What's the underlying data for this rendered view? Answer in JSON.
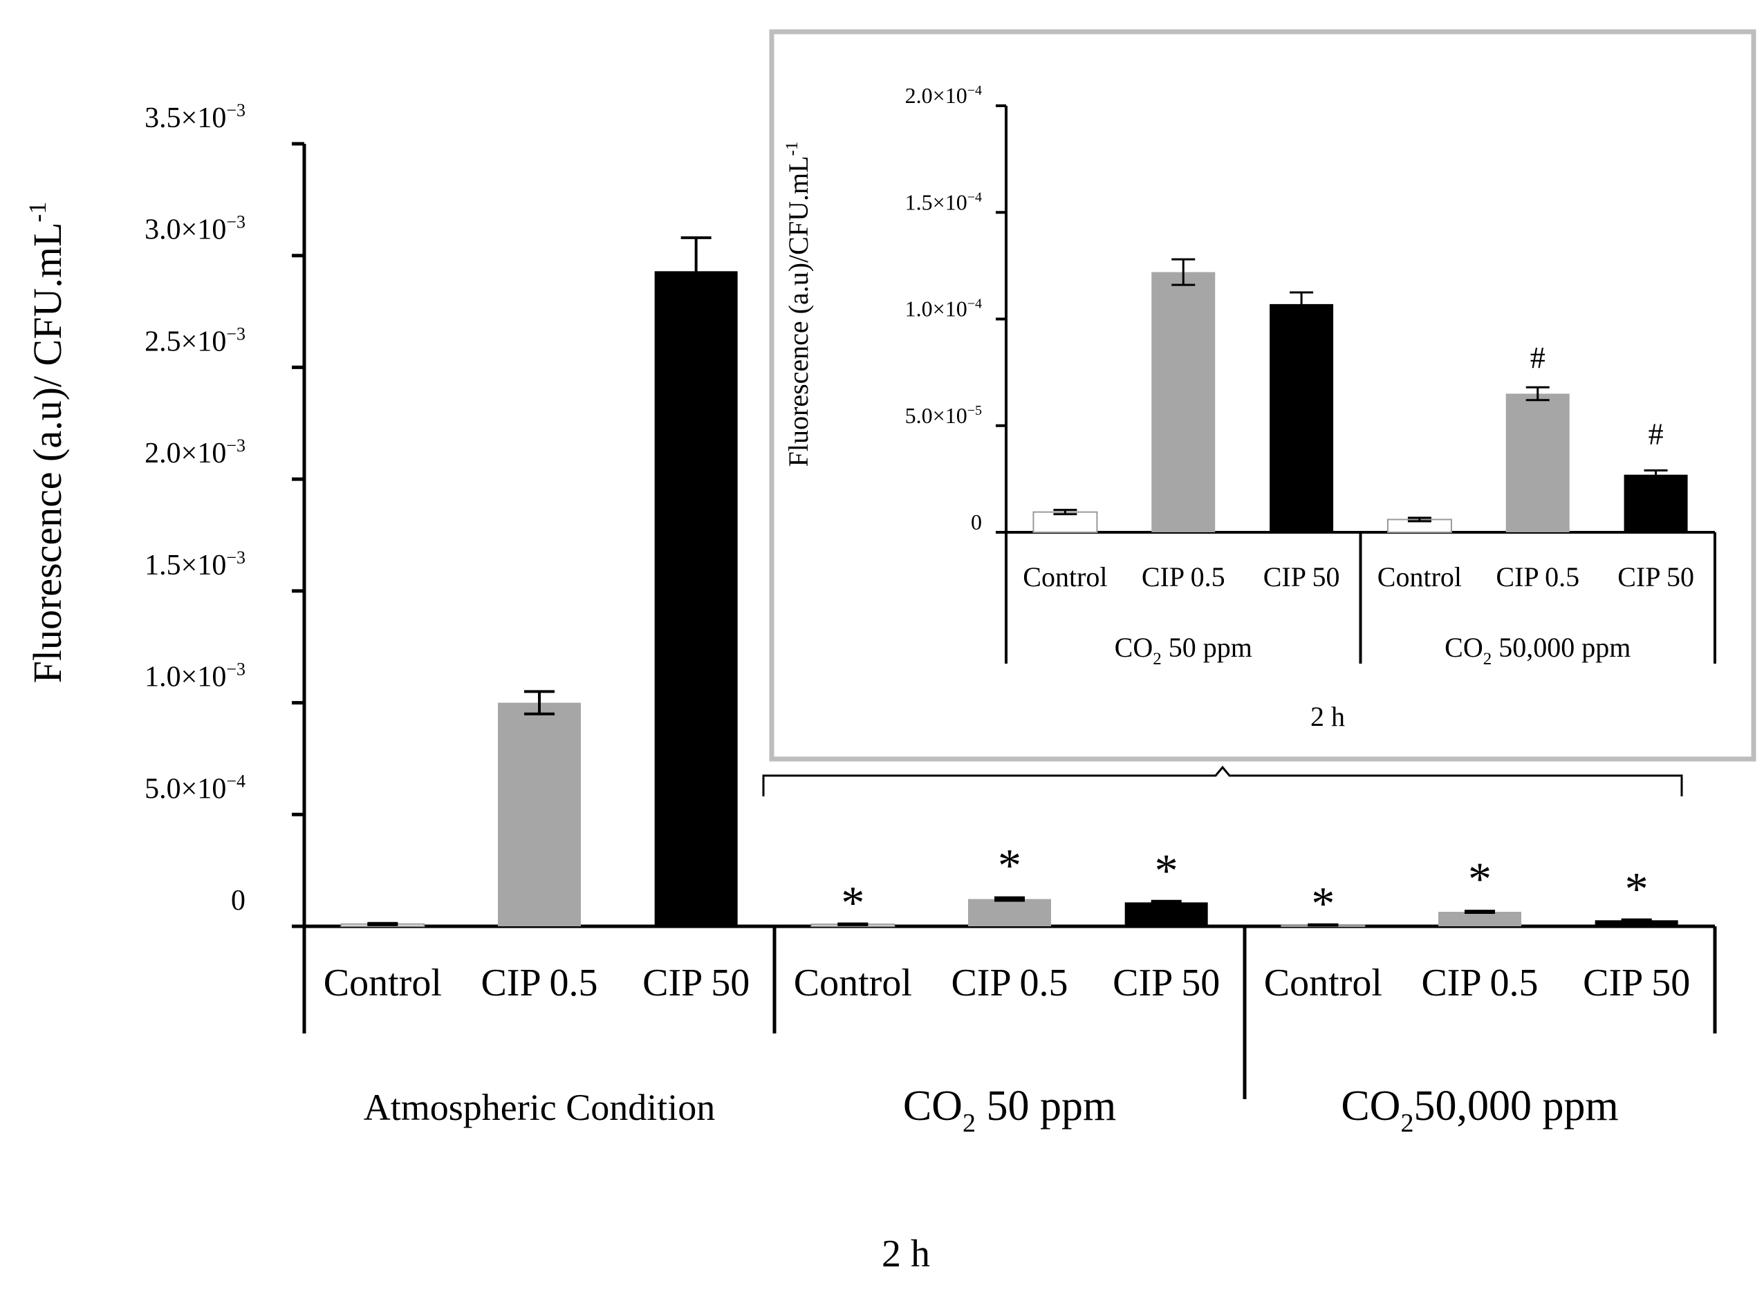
{
  "chart_data": [
    {
      "type": "bar",
      "ylabel_main": "Fluorescence (a.u)/ CFU.mL",
      "ylabel_sup": "-1",
      "ylim": [
        0,
        0.0035
      ],
      "ytick_values": [
        0,
        0.0005,
        0.001,
        0.0015,
        0.002,
        0.0025,
        0.003,
        0.0035
      ],
      "ytick_labels": [
        {
          "value": 0,
          "base": "0",
          "exp": ""
        },
        {
          "value": 0.0005,
          "base": "5.0×10",
          "exp": "−4"
        },
        {
          "value": 0.001,
          "base": "1.0×10",
          "exp": "−3"
        },
        {
          "value": 0.0015,
          "base": "1.5×10",
          "exp": "−3"
        },
        {
          "value": 0.002,
          "base": "2.0×10",
          "exp": "−3"
        },
        {
          "value": 0.0025,
          "base": "2.5×10",
          "exp": "−3"
        },
        {
          "value": 0.003,
          "base": "3.0×10",
          "exp": "−3"
        },
        {
          "value": 0.0035,
          "base": "3.5×10",
          "exp": "−3"
        }
      ],
      "xlabel": "2 h",
      "groups": [
        {
          "name": "Atmospheric Condition",
          "co2": false,
          "rest": "Atmospheric Condition"
        },
        {
          "name": "CO2 50 ppm",
          "co2": true,
          "rest": " 50 ppm"
        },
        {
          "name": "CO2 50,000 ppm",
          "co2": true,
          "rest": "50,000 ppm"
        }
      ],
      "co2_base": "CO",
      "co2_sub": "2",
      "categories": [
        "Control",
        "CIP 0.5",
        "CIP 50"
      ],
      "series_fill": [
        "#ffffff",
        "#a6a6a6",
        "#000000"
      ],
      "bars": [
        {
          "group": 0,
          "label": "Control",
          "value": 1e-05,
          "error": 3e-06,
          "marker": ""
        },
        {
          "group": 0,
          "label": "CIP 0.5",
          "value": 0.001,
          "error": 5e-05,
          "marker": ""
        },
        {
          "group": 0,
          "label": "CIP 50",
          "value": 0.00293,
          "error": 0.00015,
          "marker": ""
        },
        {
          "group": 1,
          "label": "Control",
          "value": 9e-06,
          "error": 2e-06,
          "marker": "*"
        },
        {
          "group": 1,
          "label": "CIP 0.5",
          "value": 0.000122,
          "error": 6e-06,
          "marker": "*"
        },
        {
          "group": 1,
          "label": "CIP 50",
          "value": 0.000107,
          "error": 5e-06,
          "marker": "*"
        },
        {
          "group": 2,
          "label": "Control",
          "value": 6e-06,
          "error": 1e-06,
          "marker": "*"
        },
        {
          "group": 2,
          "label": "CIP 0.5",
          "value": 6.5e-05,
          "error": 3e-06,
          "marker": "*"
        },
        {
          "group": 2,
          "label": "CIP 50",
          "value": 2.7e-05,
          "error": 2e-06,
          "marker": "*"
        }
      ]
    },
    {
      "type": "bar",
      "title": "inset",
      "ylabel_main": "Fluorescence (a.u)/CFU.mL",
      "ylabel_sup": "-1",
      "ylim": [
        0,
        0.0002
      ],
      "ytick_values": [
        0,
        5e-05,
        0.0001,
        0.00015,
        0.0002
      ],
      "ytick_labels": [
        {
          "value": 0,
          "base": "0",
          "exp": ""
        },
        {
          "value": 5e-05,
          "base": "5.0×10",
          "exp": "−5"
        },
        {
          "value": 0.0001,
          "base": "1.0×10",
          "exp": "−4"
        },
        {
          "value": 0.00015,
          "base": "1.5×10",
          "exp": "−4"
        },
        {
          "value": 0.0002,
          "base": "2.0×10",
          "exp": "−4"
        }
      ],
      "xlabel": "2 h",
      "groups": [
        {
          "name": "CO2 50 ppm",
          "co2": true,
          "rest": " 50 ppm"
        },
        {
          "name": "CO2 50,000 ppm",
          "co2": true,
          "rest": " 50,000 ppm"
        }
      ],
      "co2_base": "CO",
      "co2_sub": "2",
      "categories": [
        "Control",
        "CIP 0.5",
        "CIP 50"
      ],
      "series_fill": [
        "#ffffff",
        "#a6a6a6",
        "#000000"
      ],
      "bars": [
        {
          "group": 0,
          "label": "Control",
          "value": 9.5e-06,
          "error": 1e-06,
          "marker": ""
        },
        {
          "group": 0,
          "label": "CIP 0.5",
          "value": 0.000122,
          "error": 6e-06,
          "marker": ""
        },
        {
          "group": 0,
          "label": "CIP 50",
          "value": 0.000107,
          "error": 5.5e-06,
          "marker": ""
        },
        {
          "group": 1,
          "label": "Control",
          "value": 6e-06,
          "error": 8e-07,
          "marker": ""
        },
        {
          "group": 1,
          "label": "CIP 0.5",
          "value": 6.5e-05,
          "error": 3e-06,
          "marker": "#"
        },
        {
          "group": 1,
          "label": "CIP 50",
          "value": 2.7e-05,
          "error": 2e-06,
          "marker": "#"
        }
      ]
    }
  ]
}
